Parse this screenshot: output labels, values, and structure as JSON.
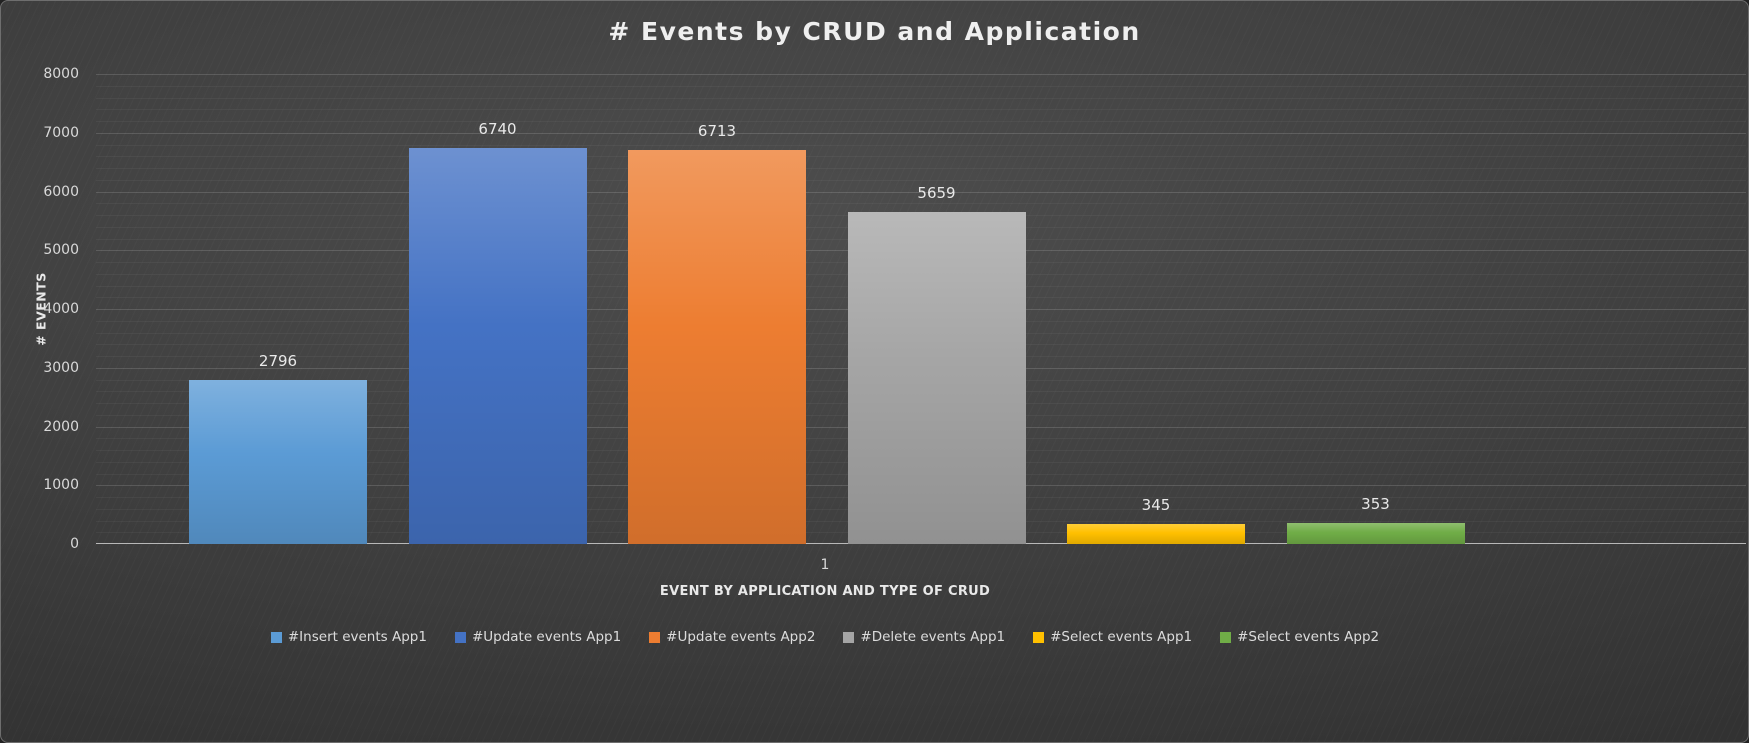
{
  "chart_data": {
    "type": "bar",
    "title": "# Events by CRUD and Application",
    "xlabel": "EVENT BY APPLICATION AND TYPE OF CRUD",
    "ylabel": "# EVENTS",
    "categories": [
      "1"
    ],
    "series": [
      {
        "name": "#Insert events App1",
        "values": [
          2796
        ],
        "color": "#5b9bd5"
      },
      {
        "name": "#Update events App1",
        "values": [
          6740
        ],
        "color": "#4472c4"
      },
      {
        "name": "#Update events App2",
        "values": [
          6713
        ],
        "color": "#ed7d31"
      },
      {
        "name": "#Delete events App1",
        "values": [
          5659
        ],
        "color": "#a5a5a5"
      },
      {
        "name": "#Select events App1",
        "values": [
          345
        ],
        "color": "#ffc000"
      },
      {
        "name": "#Select events App2",
        "values": [
          353
        ],
        "color": "#70ad47"
      }
    ],
    "ylim": [
      0,
      8000
    ],
    "y_tick_interval": 1000,
    "y_minor_tick_interval": 200,
    "y_ticks": [
      "0",
      "1000",
      "2000",
      "3000",
      "4000",
      "5000",
      "6000",
      "7000",
      "8000"
    ],
    "grid": true,
    "legend_position": "bottom",
    "data_labels": true
  }
}
